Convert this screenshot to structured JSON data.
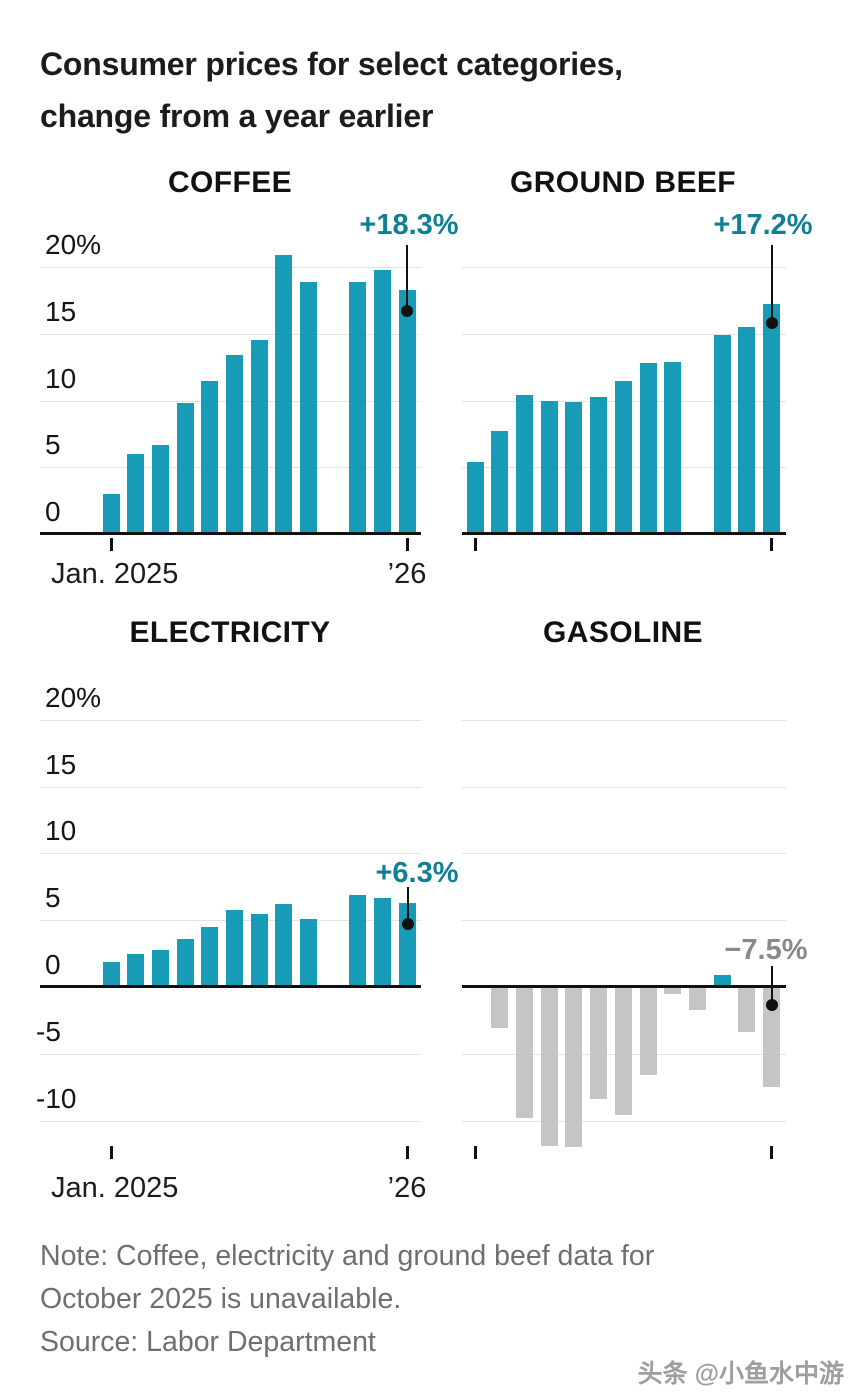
{
  "header": {
    "title_line1": "Consumer prices for select categories,",
    "title_line2": "change from a year earlier"
  },
  "axis": {
    "x_start": "Jan. 2025",
    "x_end": "’26",
    "y_top_row": [
      {
        "value": 20,
        "label": "20%"
      },
      {
        "value": 15,
        "label": "15"
      },
      {
        "value": 10,
        "label": "10"
      },
      {
        "value": 5,
        "label": "5"
      },
      {
        "value": 0,
        "label": "0"
      }
    ],
    "y_bottom_row": [
      {
        "value": 20,
        "label": "20%"
      },
      {
        "value": 15,
        "label": "15"
      },
      {
        "value": 10,
        "label": "10"
      },
      {
        "value": 5,
        "label": "5"
      },
      {
        "value": 0,
        "label": "0"
      },
      {
        "value": -5,
        "label": "-5"
      },
      {
        "value": -10,
        "label": "-10"
      }
    ]
  },
  "colors": {
    "teal_bar": "#189bb6",
    "teal_text": "#0e7f94",
    "gray_bar": "#c5c5c5",
    "gray_text": "#898989",
    "grid": "#e3e3e3",
    "axis": "#111111"
  },
  "chart_data": [
    {
      "type": "bar",
      "title": "COFFEE",
      "ylabel": "% change from a year earlier",
      "ylim": [
        0,
        22
      ],
      "gridlines": [
        20,
        15,
        10,
        5,
        0
      ],
      "x": [
        "Jan 2025",
        "Feb 2025",
        "Mar 2025",
        "Apr 2025",
        "May 2025",
        "Jun 2025",
        "Jul 2025",
        "Aug 2025",
        "Sep 2025",
        "Oct 2025",
        "Nov 2025",
        "Dec 2025",
        "Jan 2026"
      ],
      "values": [
        3.0,
        6.0,
        6.7,
        9.8,
        11.5,
        13.4,
        14.5,
        20.9,
        18.9,
        null,
        18.9,
        19.8,
        18.3
      ],
      "annotation": {
        "text": "+18.3%",
        "color_key": "teal_text",
        "points_to": "Jan 2026"
      }
    },
    {
      "type": "bar",
      "title": "GROUND BEEF",
      "ylabel": "% change from a year earlier",
      "ylim": [
        0,
        22
      ],
      "gridlines": [
        20,
        15,
        10,
        5,
        0
      ],
      "x": [
        "Jan 2025",
        "Feb 2025",
        "Mar 2025",
        "Apr 2025",
        "May 2025",
        "Jun 2025",
        "Jul 2025",
        "Aug 2025",
        "Sep 2025",
        "Oct 2025",
        "Nov 2025",
        "Dec 2025",
        "Jan 2026"
      ],
      "values": [
        5.4,
        7.7,
        10.4,
        10.0,
        9.9,
        10.3,
        11.5,
        12.8,
        12.9,
        null,
        14.9,
        15.5,
        17.2
      ],
      "annotation": {
        "text": "+17.2%",
        "color_key": "teal_text",
        "points_to": "Jan 2026"
      }
    },
    {
      "type": "bar",
      "title": "ELECTRICITY",
      "ylabel": "% change from a year earlier",
      "ylim": [
        -12.5,
        22
      ],
      "gridlines": [
        20,
        15,
        10,
        5,
        0,
        -5,
        -10
      ],
      "x": [
        "Jan 2025",
        "Feb 2025",
        "Mar 2025",
        "Apr 2025",
        "May 2025",
        "Jun 2025",
        "Jul 2025",
        "Aug 2025",
        "Sep 2025",
        "Oct 2025",
        "Nov 2025",
        "Dec 2025",
        "Jan 2026"
      ],
      "values": [
        1.9,
        2.5,
        2.8,
        3.6,
        4.5,
        5.8,
        5.5,
        6.2,
        5.1,
        null,
        6.9,
        6.7,
        6.3
      ],
      "annotation": {
        "text": "+6.3%",
        "color_key": "teal_text",
        "points_to": "Jan 2026"
      }
    },
    {
      "type": "bar",
      "title": "GASOLINE",
      "ylabel": "% change from a year earlier",
      "ylim": [
        -12.5,
        22
      ],
      "gridlines": [
        20,
        15,
        10,
        5,
        0,
        -5,
        -10
      ],
      "x": [
        "Jan 2025",
        "Feb 2025",
        "Mar 2025",
        "Apr 2025",
        "May 2025",
        "Jun 2025",
        "Jul 2025",
        "Aug 2025",
        "Sep 2025",
        "Oct 2025",
        "Nov 2025",
        "Dec 2025",
        "Jan 2026"
      ],
      "values": [
        -0.1,
        -3.1,
        -9.8,
        -11.9,
        -12.0,
        -8.4,
        -9.6,
        -6.6,
        -0.5,
        -1.7,
        0.9,
        -3.4,
        -7.5
      ],
      "annotation": {
        "text": "−7.5%",
        "color_key": "gray_text",
        "points_to": "Jan 2026"
      }
    }
  ],
  "footer": {
    "note_line1": "Note: Coffee, electricity and ground beef data for",
    "note_line2": "October 2025 is unavailable.",
    "source": "Source: Labor Department",
    "watermark": "头条 @小鱼水中游"
  }
}
